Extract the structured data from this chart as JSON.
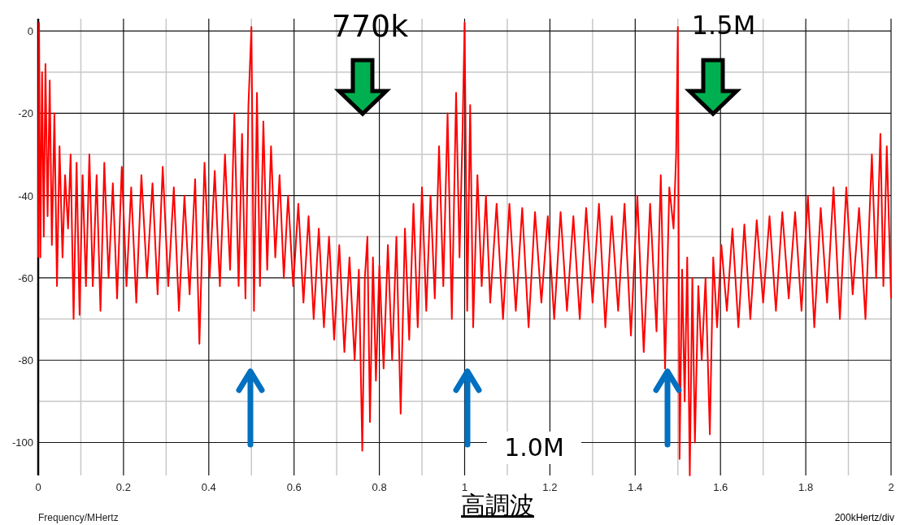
{
  "chart_data": {
    "type": "line",
    "xlabel": "Frequency/MHertz",
    "annotations": [
      "770k",
      "1.5M",
      "1.0M",
      "高調波",
      "200kHertz/div"
    ],
    "xlim": [
      0,
      2
    ],
    "ylim": [
      -108,
      3
    ],
    "xticks": [
      0,
      0.2,
      0.4,
      0.6,
      0.8,
      1,
      1.2,
      1.4,
      1.6,
      1.8,
      2
    ],
    "yticks": [
      0,
      -20,
      -40,
      -60,
      -80,
      -100
    ],
    "grid": true,
    "marker": "none",
    "line_style": "solid",
    "series": [
      {
        "color": "#ff0000",
        "x": [
          0,
          0.002,
          0.005,
          0.009,
          0.013,
          0.017,
          0.022,
          0.027,
          0.032,
          0.038,
          0.044,
          0.05,
          0.057,
          0.063,
          0.07,
          0.076,
          0.083,
          0.09,
          0.097,
          0.104,
          0.112,
          0.12,
          0.128,
          0.137,
          0.146,
          0.155,
          0.165,
          0.175,
          0.185,
          0.196,
          0.207,
          0.218,
          0.23,
          0.242,
          0.255,
          0.268,
          0.28,
          0.292,
          0.305,
          0.318,
          0.33,
          0.343,
          0.355,
          0.368,
          0.378,
          0.39,
          0.402,
          0.414,
          0.426,
          0.438,
          0.45,
          0.46,
          0.47,
          0.478,
          0.486,
          0.493,
          0.5,
          0.506,
          0.513,
          0.52,
          0.528,
          0.537,
          0.546,
          0.556,
          0.566,
          0.576,
          0.586,
          0.598,
          0.61,
          0.622,
          0.634,
          0.646,
          0.658,
          0.67,
          0.682,
          0.694,
          0.706,
          0.718,
          0.73,
          0.742,
          0.752,
          0.76,
          0.766,
          0.772,
          0.778,
          0.785,
          0.792,
          0.8,
          0.81,
          0.82,
          0.83,
          0.84,
          0.85,
          0.86,
          0.87,
          0.88,
          0.89,
          0.9,
          0.91,
          0.92,
          0.93,
          0.94,
          0.95,
          0.96,
          0.97,
          0.98,
          0.988,
          0.995,
          1,
          1.006,
          1.013,
          1.02,
          1.03,
          1.04,
          1.05,
          1.06,
          1.075,
          1.09,
          1.105,
          1.12,
          1.135,
          1.15,
          1.165,
          1.18,
          1.195,
          1.21,
          1.225,
          1.24,
          1.255,
          1.27,
          1.285,
          1.3,
          1.315,
          1.33,
          1.345,
          1.36,
          1.375,
          1.39,
          1.405,
          1.42,
          1.435,
          1.45,
          1.46,
          1.47,
          1.48,
          1.49,
          1.496,
          1.5,
          1.504,
          1.51,
          1.516,
          1.522,
          1.528,
          1.534,
          1.54,
          1.548,
          1.556,
          1.565,
          1.575,
          1.583,
          1.592,
          1.602,
          1.615,
          1.628,
          1.642,
          1.656,
          1.67,
          1.685,
          1.7,
          1.715,
          1.73,
          1.745,
          1.76,
          1.775,
          1.79,
          1.805,
          1.82,
          1.835,
          1.85,
          1.865,
          1.88,
          1.895,
          1.91,
          1.925,
          1.94,
          1.955,
          1.965,
          1.975,
          1.982,
          1.99,
          2
        ],
        "values": [
          -55,
          2,
          -55,
          -10,
          -50,
          -8,
          -45,
          -12,
          -52,
          -20,
          -62,
          -28,
          -55,
          -35,
          -48,
          -30,
          -70,
          -32,
          -69,
          -35,
          -62,
          -30,
          -62,
          -35,
          -68,
          -32,
          -60,
          -37,
          -65,
          -33,
          -62,
          -38,
          -66,
          -35,
          -60,
          -37,
          -64,
          -33,
          -62,
          -38,
          -68,
          -40,
          -64,
          -36,
          -76,
          -32,
          -60,
          -34,
          -62,
          -30,
          -58,
          -20,
          -62,
          -25,
          -65,
          -18,
          1,
          -68,
          -15,
          -62,
          -22,
          -58,
          -28,
          -55,
          -35,
          -60,
          -40,
          -62,
          -42,
          -66,
          -45,
          -70,
          -48,
          -72,
          -50,
          -75,
          -52,
          -78,
          -55,
          -80,
          -58,
          -102,
          -60,
          -50,
          -95,
          -55,
          -85,
          -57,
          -82,
          -52,
          -80,
          -50,
          -93,
          -48,
          -75,
          -42,
          -72,
          -38,
          -68,
          -40,
          -65,
          -28,
          -62,
          -20,
          -70,
          -15,
          -55,
          -25,
          2,
          -68,
          -18,
          -72,
          -35,
          -62,
          -40,
          -66,
          -42,
          -70,
          -42,
          -68,
          -43,
          -72,
          -44,
          -66,
          -45,
          -70,
          -44,
          -68,
          -45,
          -70,
          -43,
          -66,
          -42,
          -72,
          -45,
          -68,
          -42,
          -74,
          -40,
          -78,
          -42,
          -73,
          -35,
          -82,
          -38,
          -48,
          -30,
          1,
          -104,
          -58,
          -90,
          -55,
          -108,
          -60,
          -100,
          -62,
          -80,
          -60,
          -98,
          -55,
          -72,
          -52,
          -68,
          -48,
          -72,
          -47,
          -70,
          -46,
          -66,
          -45,
          -68,
          -44,
          -65,
          -44,
          -68,
          -40,
          -72,
          -43,
          -66,
          -38,
          -70,
          -38,
          -64,
          -43,
          -70,
          -30,
          -60,
          -25,
          -62,
          -28,
          -65
        ]
      }
    ]
  }
}
